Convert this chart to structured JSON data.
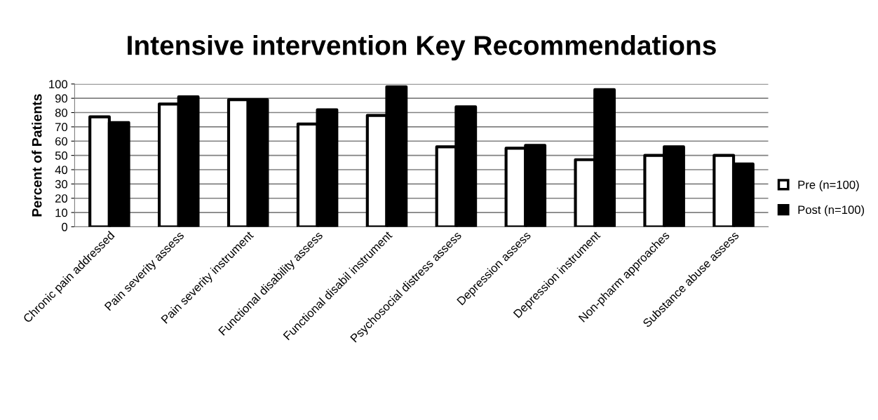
{
  "chart_data": {
    "type": "bar",
    "title": "Intensive intervention Key Recommendations",
    "ylabel": "Percent of Patients",
    "categories": [
      "Chronic pain addressed",
      "Pain severity assess",
      "Pain severity instrument",
      "Functional disability assess",
      "Functional disabil instrument",
      "Psychosocial distress assess",
      "Depression assess",
      "Depression instrument",
      "Non-pharm approaches",
      "Substance abuse assess"
    ],
    "series": [
      {
        "name": "Pre (n=100)",
        "color": "#ffffff",
        "values": [
          77,
          86,
          89,
          72,
          78,
          56,
          55,
          47,
          50,
          50
        ]
      },
      {
        "name": "Post (n=100)",
        "color": "#000000",
        "values": [
          73,
          91,
          89,
          82,
          98,
          84,
          57,
          96,
          56,
          44
        ]
      }
    ],
    "ylim": [
      0,
      100
    ],
    "yticks": [
      0,
      10,
      20,
      30,
      40,
      50,
      60,
      70,
      80,
      90,
      100
    ],
    "grid": "y",
    "legend": "right"
  }
}
